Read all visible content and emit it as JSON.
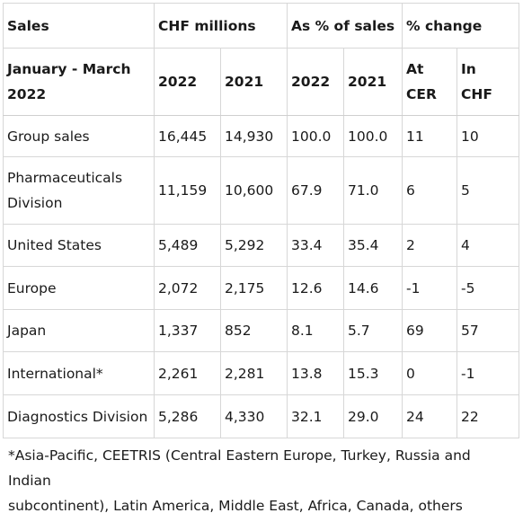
{
  "table": {
    "header_row1": {
      "sales": "Sales",
      "chf_millions": "CHF millions",
      "pct_of_sales": "As % of sales",
      "pct_change": "% change"
    },
    "header_row2": {
      "period_line1": "January - March",
      "period_line2": "2022",
      "y2022_a": "2022",
      "y2021_a": "2021",
      "y2022_b": "2022",
      "y2021_b": "2021",
      "at_cer_line1": "At",
      "at_cer_line2": "CER",
      "in_chf_line1": "In",
      "in_chf_line2": "CHF"
    },
    "rows": [
      {
        "label": "Group sales",
        "label2": "",
        "chf2022": "16,445",
        "chf2021": "14,930",
        "pct2022": "100.0",
        "pct2021": "100.0",
        "cer": "11",
        "chf": "10"
      },
      {
        "label": "Pharmaceuticals",
        "label2": "Division",
        "chf2022": "11,159",
        "chf2021": "10,600",
        "pct2022": "67.9",
        "pct2021": "71.0",
        "cer": "6",
        "chf": "5"
      },
      {
        "label": "United States",
        "label2": "",
        "chf2022": "5,489",
        "chf2021": "5,292",
        "pct2022": "33.4",
        "pct2021": "35.4",
        "cer": "2",
        "chf": "4"
      },
      {
        "label": "Europe",
        "label2": "",
        "chf2022": "2,072",
        "chf2021": "2,175",
        "pct2022": "12.6",
        "pct2021": "14.6",
        "cer": "-1",
        "chf": "-5"
      },
      {
        "label": "Japan",
        "label2": "",
        "chf2022": "1,337",
        "chf2021": "852",
        "pct2022": "8.1",
        "pct2021": "5.7",
        "cer": "69",
        "chf": "57"
      },
      {
        "label": "International*",
        "label2": "",
        "chf2022": "2,261",
        "chf2021": "2,281",
        "pct2022": "13.8",
        "pct2021": "15.3",
        "cer": "0",
        "chf": "-1"
      },
      {
        "label": "Diagnostics Division",
        "label2": "",
        "chf2022": "5,286",
        "chf2021": "4,330",
        "pct2022": "32.1",
        "pct2021": "29.0",
        "cer": "24",
        "chf": "22"
      }
    ]
  },
  "footnote": {
    "line1": "*Asia-Pacific, CEETRIS (Central Eastern Europe, Turkey, Russia and Indian",
    "line2": "subcontinent), Latin America, Middle East, Africa, Canada, others"
  }
}
